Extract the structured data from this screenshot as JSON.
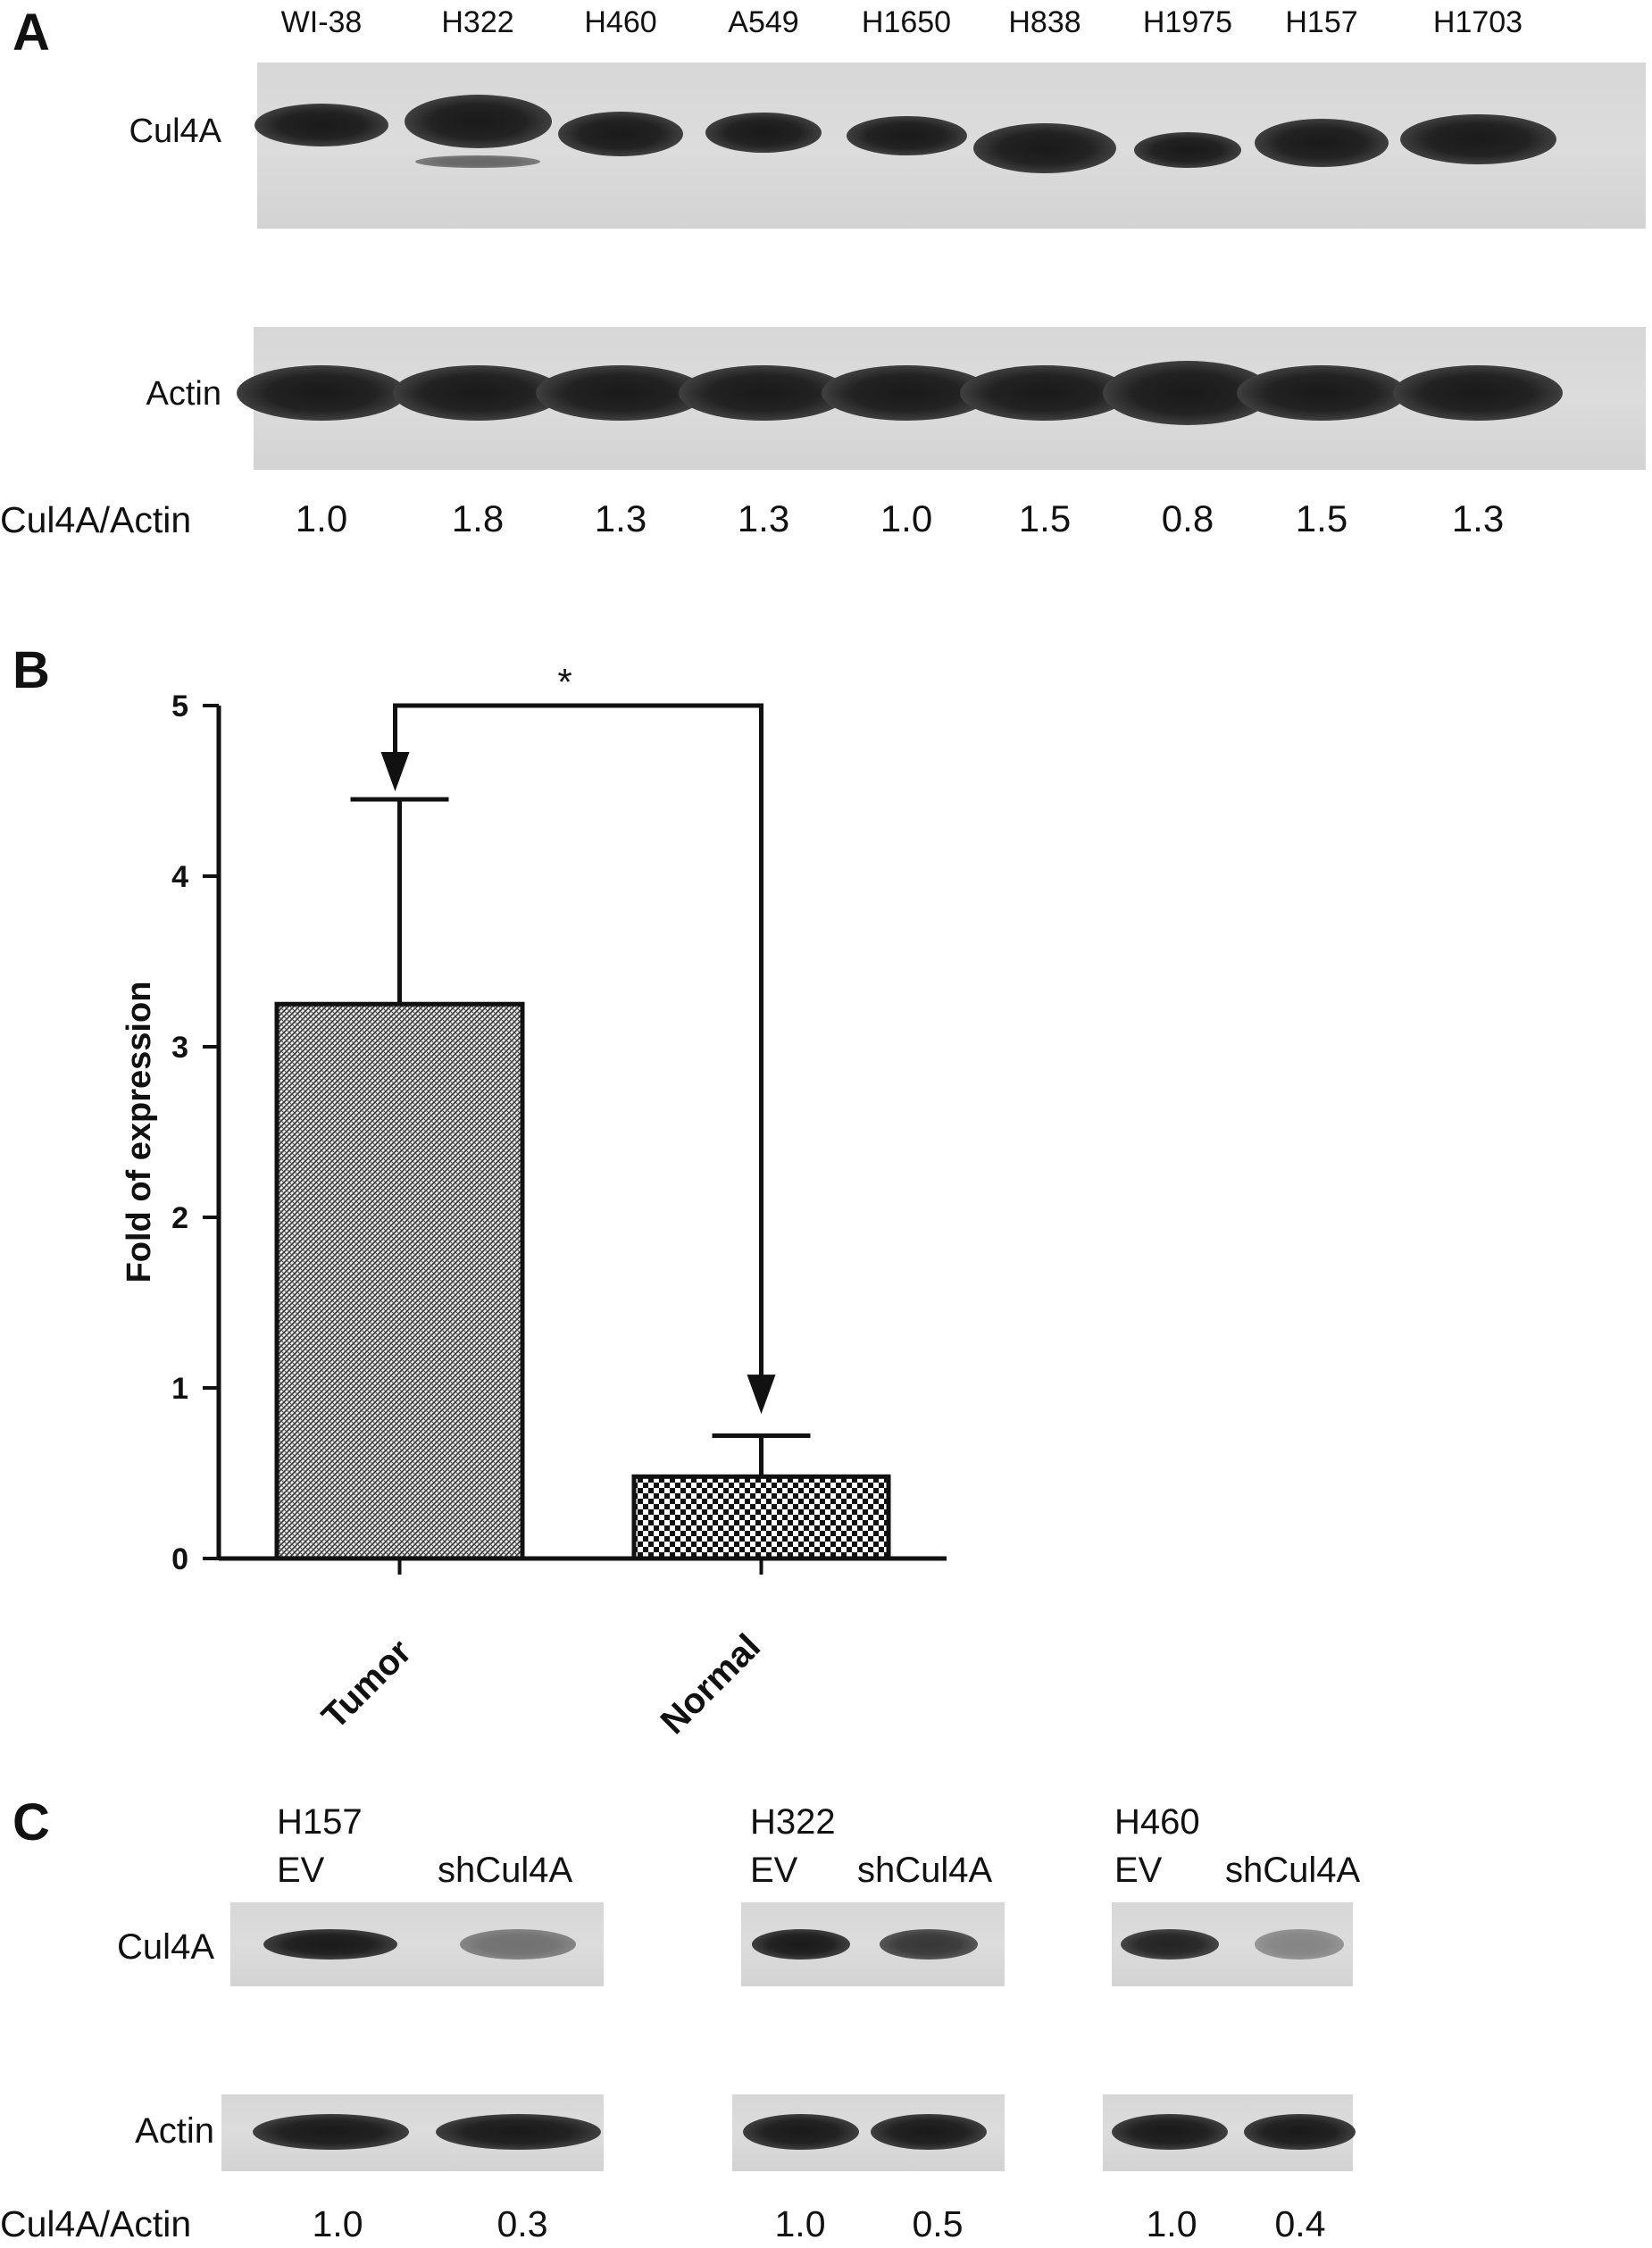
{
  "panelA": {
    "letter": "A",
    "lanes": [
      "WI-38",
      "H322",
      "H460",
      "A549",
      "H1650",
      "H838",
      "H1975",
      "H157",
      "H1703"
    ],
    "row_top": "Cul4A",
    "row_bottom": "Actin",
    "ratio_label": "Cul4A/Actin",
    "ratios": [
      "1.0",
      "1.8",
      "1.3",
      "1.3",
      "1.0",
      "1.5",
      "0.8",
      "1.5",
      "1.3"
    ]
  },
  "panelB": {
    "letter": "B",
    "significance": "*",
    "chart_data": {
      "type": "bar",
      "categories": [
        "Tumor",
        "Normal"
      ],
      "values": [
        3.25,
        0.48
      ],
      "error_upper": [
        4.45,
        0.72
      ],
      "ylabel": "Fold of expression",
      "ylim": [
        0,
        5
      ],
      "yticks": [
        "0",
        "1",
        "2",
        "3",
        "4",
        "5"
      ],
      "annotation": "*"
    }
  },
  "panelC": {
    "letter": "C",
    "row_top": "Cul4A",
    "row_bottom": "Actin",
    "ratio_label": "Cul4A/Actin",
    "groups": [
      {
        "cell": "H157",
        "lanes": [
          "EV",
          "shCul4A"
        ],
        "ratios": [
          "1.0",
          "0.3"
        ]
      },
      {
        "cell": "H322",
        "lanes": [
          "EV",
          "shCul4A"
        ],
        "ratios": [
          "1.0",
          "0.5"
        ]
      },
      {
        "cell": "H460",
        "lanes": [
          "EV",
          "shCul4A"
        ],
        "ratios": [
          "1.0",
          "0.4"
        ]
      }
    ]
  }
}
